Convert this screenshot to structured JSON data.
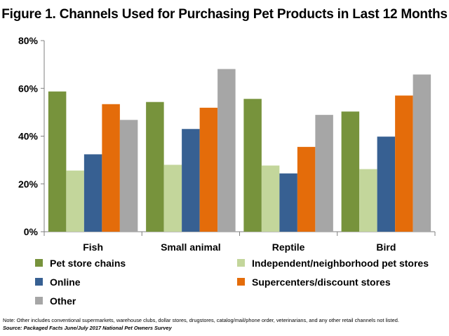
{
  "chart_data": {
    "type": "bar",
    "title": "Figure 1. Channels Used for Purchasing Pet Products in Last 12 Months",
    "categories": [
      "Fish",
      "Small animal",
      "Reptile",
      "Bird"
    ],
    "ylim": [
      0,
      80
    ],
    "yticks": [
      0,
      20,
      40,
      60,
      80
    ],
    "ytick_labels": [
      "0%",
      "20%",
      "40%",
      "60%",
      "80%"
    ],
    "grid": false,
    "legend_placement": "bottom",
    "series": [
      {
        "name": "Pet store chains",
        "color": "#77933c",
        "values": [
          58.7,
          54.3,
          55.6,
          50.3
        ]
      },
      {
        "name": "Independent/neighborhood pet stores",
        "color": "#c3d69b",
        "values": [
          25.6,
          28.0,
          27.7,
          26.2
        ]
      },
      {
        "name": "Online",
        "color": "#376092",
        "values": [
          32.4,
          43.0,
          24.4,
          39.8
        ]
      },
      {
        "name": "Supercenters/discount stores",
        "color": "#e46c0a",
        "values": [
          53.4,
          51.9,
          35.5,
          57.0
        ]
      },
      {
        "name": "Other",
        "color": "#a6a6a6",
        "values": [
          46.8,
          68.1,
          48.9,
          65.8
        ]
      }
    ]
  },
  "note": "Note: Other includes conventional supermarkets, warehouse clubs, dollar stores, drugstores, catalog/mail/phone order, veterinarians, and any other retail channels not listed.",
  "source": "Source: Packaged Facts June/July 2017 National Pet Owners Survey"
}
